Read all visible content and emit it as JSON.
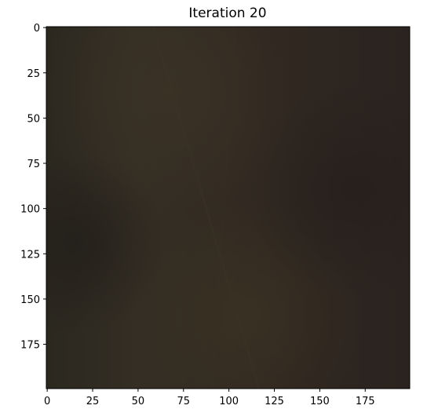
{
  "chart_data": {
    "type": "heatmap",
    "title": "Iteration 20",
    "xlabel": "",
    "ylabel": "",
    "xlim": [
      -0.5,
      199.5
    ],
    "ylim": [
      199.5,
      -0.5
    ],
    "x_ticks": [
      0,
      25,
      50,
      75,
      100,
      125,
      150,
      175
    ],
    "y_ticks": [
      0,
      25,
      50,
      75,
      100,
      125,
      150,
      175
    ],
    "image_size": [
      200,
      200
    ],
    "grid": false,
    "dominant_colors": {
      "base": "#2e2820",
      "warm_light": "#3a3226",
      "dark": "#26211c",
      "olive": "#36301f"
    }
  }
}
